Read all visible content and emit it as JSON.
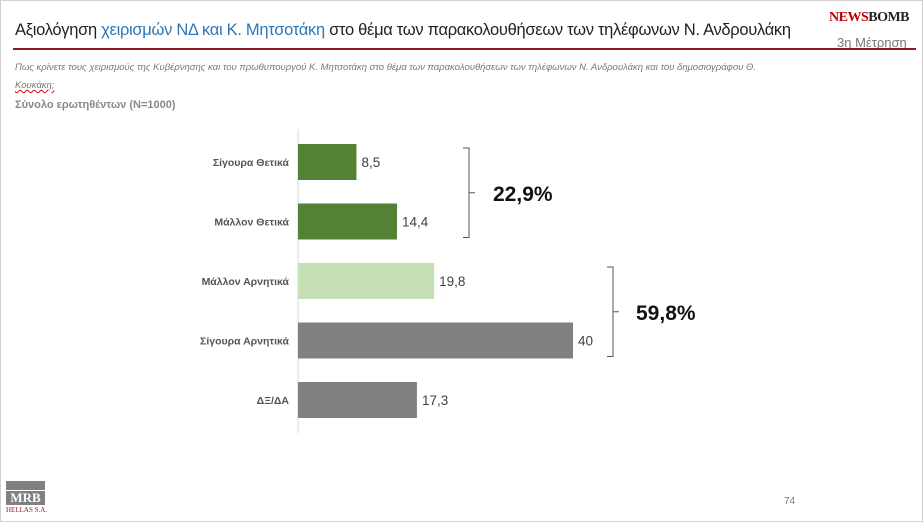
{
  "header": {
    "title_pre": "Αξιολόγηση ",
    "title_hl": "χειρισμών ΝΔ και Κ. Μητσοτάκη",
    "title_post": " στο θέμα των παρακολουθήσεων των τηλέφωνων Ν. Ανδρουλάκη",
    "logo_news": "NEWS",
    "logo_bomb": "BOMB",
    "measurement": "3η Μέτρηση"
  },
  "question": {
    "text": "Πως κρίνετε τους χειρισμούς της Κυβέρνησης και του πρωθυπουργού Κ. Μητσοτάκη στο θέμα των παρακολουθήσεων των τηλέφωνων Ν. Ανδρουλάκη και του δημοσιογράφου Θ. ",
    "squiggle": "Κουκάκη;"
  },
  "sample": "Σύνολο ερωτηθέντων (Ν=1000)",
  "chart_data": {
    "type": "bar",
    "orientation": "horizontal",
    "categories": [
      "Σίγουρα Θετικά",
      "Μάλλον Θετικά",
      "Μάλλον Αρνητικά",
      "Σίγουρα Αρνητικά",
      "ΔΞ/ΔΑ"
    ],
    "values": [
      8.5,
      14.4,
      19.8,
      40,
      17.3
    ],
    "value_labels": [
      "8,5",
      "14,4",
      "19,8",
      "40",
      "17,3"
    ],
    "colors": [
      "#548235",
      "#548235",
      "#c5e0b4",
      "#808080",
      "#808080"
    ],
    "xlim": [
      0,
      40
    ],
    "groups": [
      {
        "label": "22,9%",
        "from": 0,
        "to": 1
      },
      {
        "label": "59,8%",
        "from": 2,
        "to": 3
      }
    ]
  },
  "footer": {
    "page": "74",
    "mrb": "MRB",
    "mrb_sub": "HELLAS S.A."
  }
}
